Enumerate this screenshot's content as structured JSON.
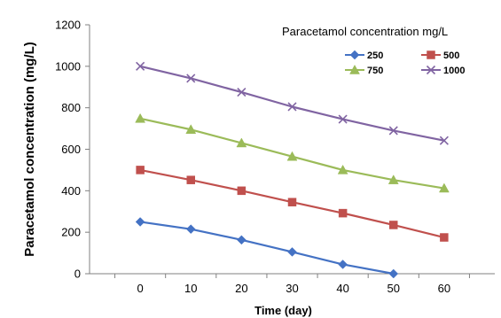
{
  "chart_data": {
    "type": "line",
    "title": "",
    "xlabel": "Time (day)",
    "ylabel": "Paracetamol concentration (mg/L)",
    "xlim": [
      -10,
      70
    ],
    "ylim": [
      0,
      1200
    ],
    "x_ticks": [
      "0",
      "10",
      "20",
      "30",
      "40",
      "50",
      "60"
    ],
    "y_ticks": [
      "0",
      "200",
      "400",
      "600",
      "800",
      "1000",
      "1200"
    ],
    "grid": false,
    "legend": {
      "title": "Paracetamol concentration mg/L",
      "placement": "top-right"
    },
    "x": [
      0,
      10,
      20,
      30,
      40,
      50,
      60
    ],
    "series": [
      {
        "name": "250",
        "marker": "diamond",
        "color": "#4472C4",
        "x": [
          0,
          10,
          20,
          30,
          40,
          50
        ],
        "values": [
          250,
          215,
          163,
          105,
          45,
          0
        ]
      },
      {
        "name": "500",
        "marker": "square",
        "color": "#C0504D",
        "x": [
          0,
          10,
          20,
          30,
          40,
          50,
          60
        ],
        "values": [
          500,
          452,
          400,
          345,
          292,
          235,
          175
        ]
      },
      {
        "name": "750",
        "marker": "triangle",
        "color": "#9BBB59",
        "x": [
          0,
          10,
          20,
          30,
          40,
          50,
          60
        ],
        "values": [
          748,
          695,
          630,
          565,
          500,
          452,
          412
        ]
      },
      {
        "name": "1000",
        "marker": "x",
        "color": "#8064A2",
        "x": [
          0,
          10,
          20,
          30,
          40,
          50,
          60
        ],
        "values": [
          1000,
          942,
          875,
          805,
          745,
          690,
          642
        ]
      }
    ]
  }
}
